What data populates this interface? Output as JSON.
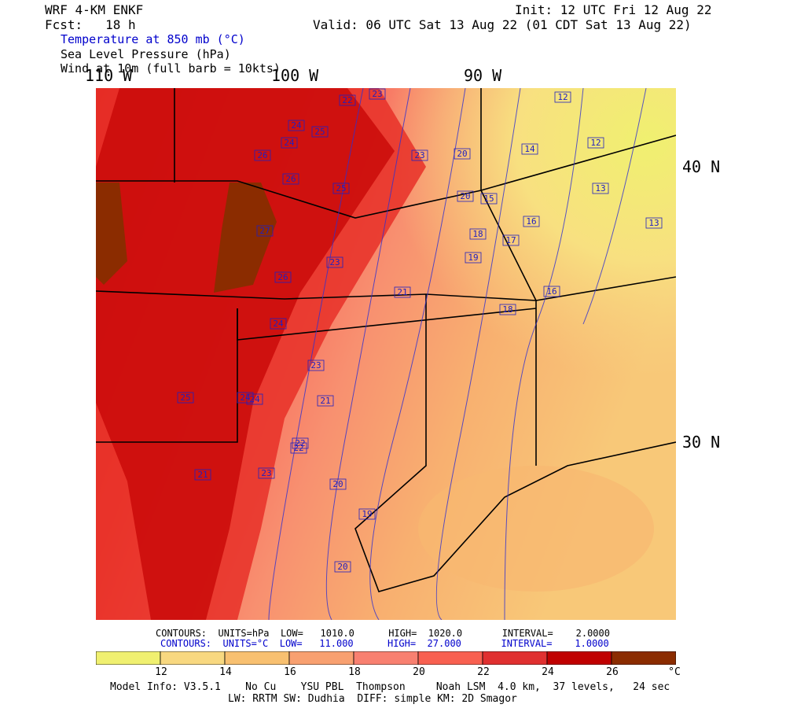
{
  "header": {
    "model": "WRF 4-KM ENKF",
    "fcst": "Fcst:   18 h",
    "init": "Init: 12 UTC Fri 12 Aug 22",
    "valid": "Valid: 06 UTC Sat 13 Aug 22 (01 CDT Sat 13 Aug 22)",
    "field1": "Temperature at 850 mb (°C)",
    "field2": "Sea Level Pressure (hPa)",
    "field3": "Wind at 10m (full barb = 10kts)"
  },
  "colors": {
    "temp_label": "#0000cc",
    "scale": [
      "#f0f070",
      "#f8d880",
      "#f8c070",
      "#f8a070",
      "#f88070",
      "#f86050",
      "#e03030",
      "#c00000",
      "#8b2c00"
    ]
  },
  "axes": {
    "lon_labels": [
      "110 W",
      "100 W",
      "90 W"
    ],
    "lat_labels": [
      "40 N",
      "30 N"
    ]
  },
  "contour_info": {
    "line1": "CONTOURS:  UNITS=hPa  LOW=   1010.0      HIGH=  1020.0       INTERVAL=    2.0000",
    "line2": "CONTOURS:  UNITS=°C  LOW=   11.000      HIGH=  27.000       INTERVAL=    1.0000"
  },
  "colorbar": {
    "ticks": [
      "12",
      "14",
      "16",
      "18",
      "20",
      "22",
      "24",
      "26"
    ],
    "unit": "°C"
  },
  "map_labels": [
    {
      "v": "22"
    },
    {
      "v": "23"
    },
    {
      "v": "25"
    },
    {
      "v": "24"
    },
    {
      "v": "26"
    },
    {
      "v": "24"
    },
    {
      "v": "23"
    },
    {
      "v": "26"
    },
    {
      "v": "25"
    },
    {
      "v": "27"
    },
    {
      "v": "23"
    },
    {
      "v": "26"
    },
    {
      "v": "24"
    },
    {
      "v": "23"
    },
    {
      "v": "21"
    },
    {
      "v": "20"
    },
    {
      "v": "20"
    },
    {
      "v": "15"
    },
    {
      "v": "18"
    },
    {
      "v": "19"
    },
    {
      "v": "17"
    },
    {
      "v": "16"
    },
    {
      "v": "14"
    },
    {
      "v": "12"
    },
    {
      "v": "12"
    },
    {
      "v": "13"
    },
    {
      "v": "13"
    },
    {
      "v": "16"
    },
    {
      "v": "18"
    },
    {
      "v": "21"
    },
    {
      "v": "22"
    },
    {
      "v": "24"
    },
    {
      "v": "25"
    },
    {
      "v": "24"
    },
    {
      "v": "21"
    },
    {
      "v": "22"
    },
    {
      "v": "23"
    },
    {
      "v": "20"
    },
    {
      "v": "19"
    },
    {
      "v": "20"
    }
  ],
  "footer": {
    "line1": "Model Info: V3.5.1    No Cu    YSU PBL  Thompson     Noah LSM  4.0 km,  37 levels,   24 sec",
    "line2": "LW: RRTM SW: Dudhia  DIFF: simple KM: 2D Smagor"
  }
}
